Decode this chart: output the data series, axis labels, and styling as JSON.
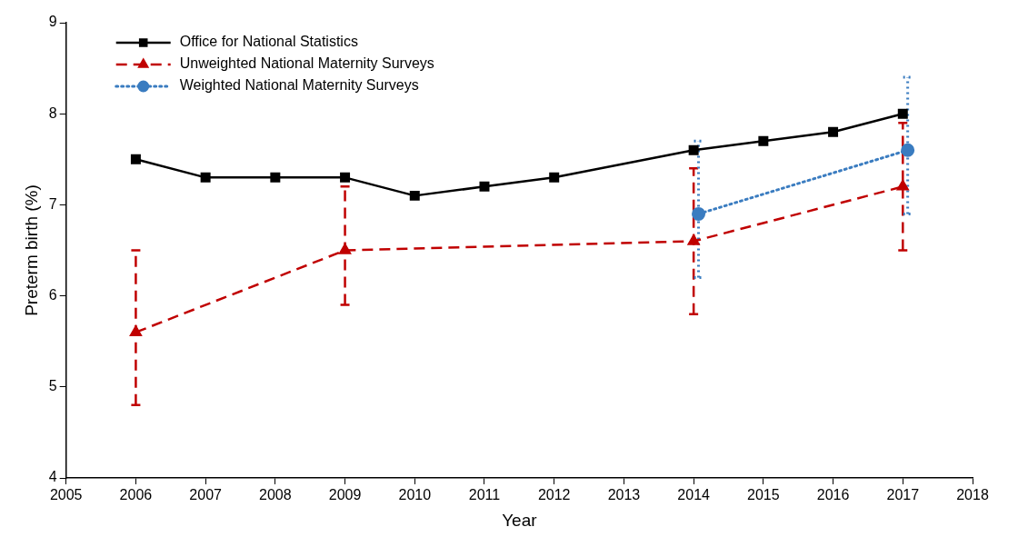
{
  "chart_data": {
    "type": "line",
    "xlabel": "Year",
    "ylabel": "Preterm birth (%)",
    "xlim": [
      2005,
      2018
    ],
    "xticks": [
      2005,
      2006,
      2007,
      2008,
      2009,
      2010,
      2011,
      2012,
      2013,
      2014,
      2015,
      2016,
      2017,
      2018
    ],
    "ylim": [
      4,
      9
    ],
    "yticks": [
      4,
      5,
      6,
      7,
      8,
      9
    ],
    "grid": false,
    "legend": "top left",
    "series": [
      {
        "name": "Office for National Statistics",
        "color": "#000000",
        "marker": "square",
        "line_style": "solid",
        "x": [
          2006,
          2007,
          2008,
          2009,
          2010,
          2011,
          2012,
          2014,
          2015,
          2016,
          2017
        ],
        "values": [
          7.5,
          7.3,
          7.3,
          7.3,
          7.1,
          7.2,
          7.3,
          7.6,
          7.7,
          7.8,
          8.0
        ]
      },
      {
        "name": "Unweighted National Maternity Surveys",
        "color": "#c00000",
        "marker": "triangle",
        "line_style": "dashed",
        "x": [
          2006,
          2009,
          2014,
          2017
        ],
        "values": [
          5.6,
          6.5,
          6.6,
          7.2
        ],
        "errors": [
          [
            4.8,
            6.5
          ],
          [
            5.9,
            7.2
          ],
          [
            5.8,
            7.4
          ],
          [
            6.5,
            7.9
          ]
        ]
      },
      {
        "name": "Weighted National Maternity Surveys",
        "color": "#3a7cc0",
        "marker": "circle",
        "line_style": "dotted",
        "x": [
          2014.07,
          2017.07
        ],
        "values": [
          6.9,
          7.6
        ],
        "errors": [
          [
            6.2,
            7.7
          ],
          [
            6.9,
            8.4
          ]
        ]
      }
    ]
  }
}
